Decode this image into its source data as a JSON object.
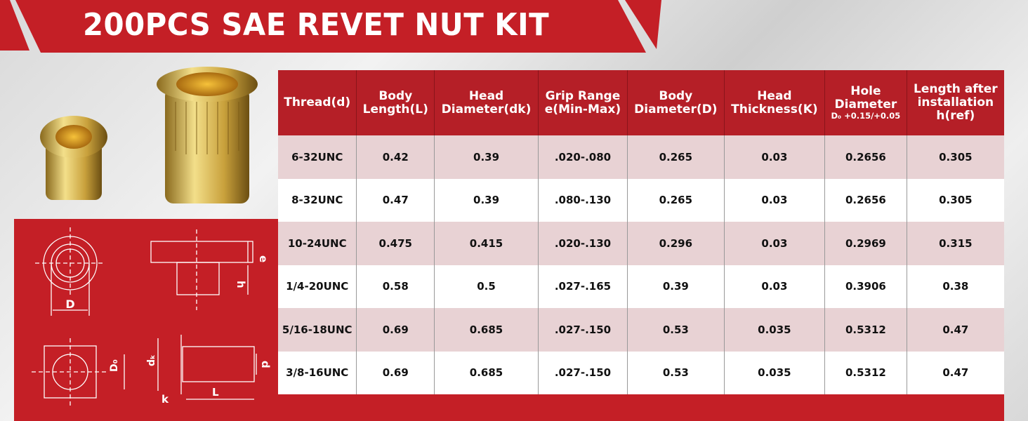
{
  "title": "200PCS SAE REVET NUT KIT",
  "colors": {
    "brand_red": "#c41f26",
    "header_red": "#b51f27",
    "row_pink": "#e8d2d4"
  },
  "diagram_labels": {
    "D": "D",
    "e": "e",
    "h": "h",
    "D0": "D₀",
    "dk": "dₖ",
    "d": "d",
    "k": "k",
    "L": "L"
  },
  "table": {
    "headers": [
      {
        "line1": "Thread(d)"
      },
      {
        "line1": "Body",
        "line2": "Length(L)"
      },
      {
        "line1": "Head",
        "line2": "Diameter(dk)"
      },
      {
        "line1": "Grip Range",
        "line2": "e(Min-Max)"
      },
      {
        "line1": "Body",
        "line2": "Diameter(D)"
      },
      {
        "line1": "Head",
        "line2": "Thickness(K)"
      },
      {
        "line1": "Hole",
        "line2": "Diameter",
        "line3": "D₀ +0.15/+0.05"
      },
      {
        "line1": "Length after",
        "line2": "installation",
        "line3": "h(ref)"
      }
    ],
    "rows": [
      [
        "6-32UNC",
        "0.42",
        "0.39",
        ".020-.080",
        "0.265",
        "0.03",
        "0.2656",
        "0.305"
      ],
      [
        "8-32UNC",
        "0.47",
        "0.39",
        ".080-.130",
        "0.265",
        "0.03",
        "0.2656",
        "0.305"
      ],
      [
        "10-24UNC",
        "0.475",
        "0.415",
        ".020-.130",
        "0.296",
        "0.03",
        "0.2969",
        "0.315"
      ],
      [
        "1/4-20UNC",
        "0.58",
        "0.5",
        ".027-.165",
        "0.39",
        "0.03",
        "0.3906",
        "0.38"
      ],
      [
        "5/16-18UNC",
        "0.69",
        "0.685",
        ".027-.150",
        "0.53",
        "0.035",
        "0.5312",
        "0.47"
      ],
      [
        "3/8-16UNC",
        "0.69",
        "0.685",
        ".027-.150",
        "0.53",
        "0.035",
        "0.5312",
        "0.47"
      ]
    ]
  }
}
